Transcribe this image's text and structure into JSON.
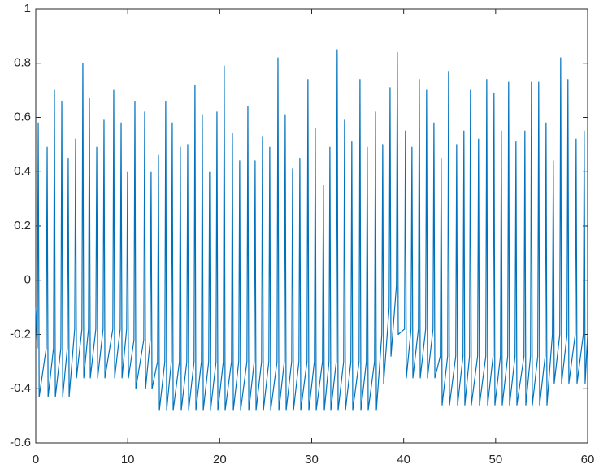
{
  "chart_data": {
    "type": "line",
    "color": "#0072bd",
    "xlim": [
      0,
      60
    ],
    "xticks": [
      0,
      10,
      20,
      30,
      40,
      50,
      60
    ],
    "ylim": [
      -0.6,
      1
    ],
    "yticks": [
      -0.6,
      -0.4,
      -0.2,
      0,
      0.2,
      0.4,
      0.6,
      0.8,
      1
    ],
    "x": [
      0,
      0.17,
      0.27,
      0.37,
      1.14,
      1.24,
      1.34,
      1.93,
      2.03,
      2.13,
      2.73,
      2.83,
      2.93,
      3.43,
      3.53,
      3.63,
      4.23,
      4.33,
      4.43,
      5.02,
      5.12,
      5.22,
      5.73,
      5.83,
      5.93,
      6.53,
      6.63,
      6.73,
      7.32,
      7.42,
      7.52,
      8.38,
      8.48,
      8.58,
      9.18,
      9.28,
      9.38,
      9.88,
      9.98,
      10.08,
      10.68,
      10.78,
      10.88,
      11.74,
      11.84,
      11.94,
      12.44,
      12.54,
      12.64,
      13.24,
      13.34,
      13.44,
      14.03,
      14.13,
      14.23,
      14.74,
      14.84,
      14.94,
      15.62,
      15.72,
      15.82,
      16.42,
      16.52,
      16.62,
      17.21,
      17.31,
      17.41,
      18.01,
      18.11,
      18.21,
      18.8,
      18.9,
      19,
      19.6,
      19.7,
      19.8,
      20.39,
      20.49,
      20.59,
      21.28,
      21.38,
      21.48,
      22.07,
      22.17,
      22.27,
      22.96,
      23.06,
      23.16,
      23.75,
      23.85,
      23.95,
      24.55,
      24.65,
      24.75,
      25.34,
      25.44,
      25.54,
      26.23,
      26.33,
      26.43,
      27.02,
      27.12,
      27.22,
      27.82,
      27.92,
      28.02,
      28.61,
      28.71,
      28.81,
      29.49,
      29.59,
      29.69,
      30.29,
      30.39,
      30.49,
      31.17,
      31.27,
      31.37,
      31.88,
      31.98,
      32.08,
      32.67,
      32.77,
      32.87,
      33.47,
      33.57,
      33.67,
      34.26,
      34.36,
      34.46,
      35.15,
      35.25,
      35.35,
      35.94,
      36.04,
      36.14,
      36.83,
      36.93,
      37.03,
      37.62,
      37.72,
      37.82,
      38.42,
      38.52,
      38.62,
      39.21,
      39.31,
      39.41,
      40.09,
      40.19,
      40.29,
      40.8,
      40.9,
      41,
      41.6,
      41.7,
      41.8,
      42.39,
      42.49,
      42.59,
      43.19,
      43.29,
      43.39,
      43.98,
      44.08,
      44.18,
      44.78,
      44.88,
      44.98,
      45.66,
      45.76,
      45.86,
      46.45,
      46.55,
      46.65,
      47.16,
      47.26,
      47.36,
      48.04,
      48.14,
      48.24,
      48.93,
      49.03,
      49.13,
      49.72,
      49.82,
      49.92,
      50.52,
      50.62,
      50.72,
      51.31,
      51.41,
      51.51,
      52.11,
      52.21,
      52.31,
      53.08,
      53.18,
      53.28,
      53.79,
      53.89,
      53.99,
      54.58,
      54.68,
      54.78,
      55.38,
      55.48,
      55.58,
      56.17,
      56.27,
      56.37,
      56.97,
      57.07,
      57.17,
      57.76,
      57.86,
      57.96,
      58.65,
      58.75,
      58.85,
      59.53,
      59.63,
      59.73,
      60
    ],
    "values": [
      -0.1,
      -0.25,
      0.58,
      -0.43,
      -0.25,
      0.49,
      -0.43,
      -0.25,
      0.7,
      -0.43,
      -0.25,
      0.66,
      -0.43,
      -0.25,
      0.45,
      -0.43,
      -0.18,
      0.52,
      -0.36,
      -0.18,
      0.8,
      -0.36,
      -0.18,
      0.67,
      -0.36,
      -0.18,
      0.49,
      -0.36,
      -0.18,
      0.59,
      -0.36,
      -0.18,
      0.7,
      -0.36,
      -0.18,
      0.58,
      -0.36,
      -0.18,
      0.4,
      -0.36,
      -0.22,
      0.66,
      -0.4,
      -0.22,
      0.62,
      -0.4,
      -0.22,
      0.4,
      -0.4,
      -0.3,
      0.46,
      -0.48,
      -0.3,
      0.66,
      -0.48,
      -0.3,
      0.58,
      -0.48,
      -0.3,
      0.49,
      -0.48,
      -0.3,
      0.5,
      -0.48,
      -0.3,
      0.72,
      -0.48,
      -0.3,
      0.61,
      -0.48,
      -0.3,
      0.4,
      -0.48,
      -0.3,
      0.62,
      -0.48,
      -0.3,
      0.79,
      -0.48,
      -0.3,
      0.54,
      -0.48,
      -0.3,
      0.44,
      -0.48,
      -0.3,
      0.64,
      -0.48,
      -0.3,
      0.44,
      -0.48,
      -0.3,
      0.53,
      -0.48,
      -0.3,
      0.49,
      -0.48,
      -0.3,
      0.82,
      -0.48,
      -0.3,
      0.61,
      -0.48,
      -0.3,
      0.41,
      -0.48,
      -0.3,
      0.45,
      -0.48,
      -0.3,
      0.74,
      -0.48,
      -0.3,
      0.56,
      -0.48,
      -0.3,
      0.35,
      -0.48,
      -0.3,
      0.49,
      -0.48,
      -0.3,
      0.85,
      -0.48,
      -0.3,
      0.59,
      -0.48,
      -0.3,
      0.51,
      -0.48,
      -0.3,
      0.74,
      -0.48,
      -0.3,
      0.49,
      -0.48,
      -0.3,
      0.62,
      -0.48,
      -0.2,
      0.5,
      -0.38,
      -0.1,
      0.71,
      -0.28,
      -0.02,
      0.84,
      -0.2,
      -0.18,
      0.55,
      -0.36,
      -0.18,
      0.49,
      -0.36,
      -0.18,
      0.74,
      -0.36,
      -0.18,
      0.7,
      -0.36,
      -0.18,
      0.58,
      -0.36,
      -0.28,
      0.45,
      -0.46,
      -0.28,
      0.77,
      -0.46,
      -0.28,
      0.5,
      -0.46,
      -0.28,
      0.55,
      -0.46,
      -0.28,
      0.7,
      -0.46,
      -0.28,
      0.52,
      -0.46,
      -0.28,
      0.74,
      -0.46,
      -0.28,
      0.69,
      -0.46,
      -0.28,
      0.55,
      -0.46,
      -0.28,
      0.73,
      -0.46,
      -0.28,
      0.51,
      -0.46,
      -0.28,
      0.55,
      -0.46,
      -0.28,
      0.73,
      -0.46,
      -0.28,
      0.73,
      -0.46,
      -0.28,
      0.58,
      -0.46,
      -0.2,
      0.44,
      -0.38,
      -0.2,
      0.82,
      -0.38,
      -0.2,
      0.74,
      -0.38,
      -0.2,
      0.52,
      -0.38,
      -0.2,
      0.55,
      -0.38,
      -0.2
    ]
  }
}
